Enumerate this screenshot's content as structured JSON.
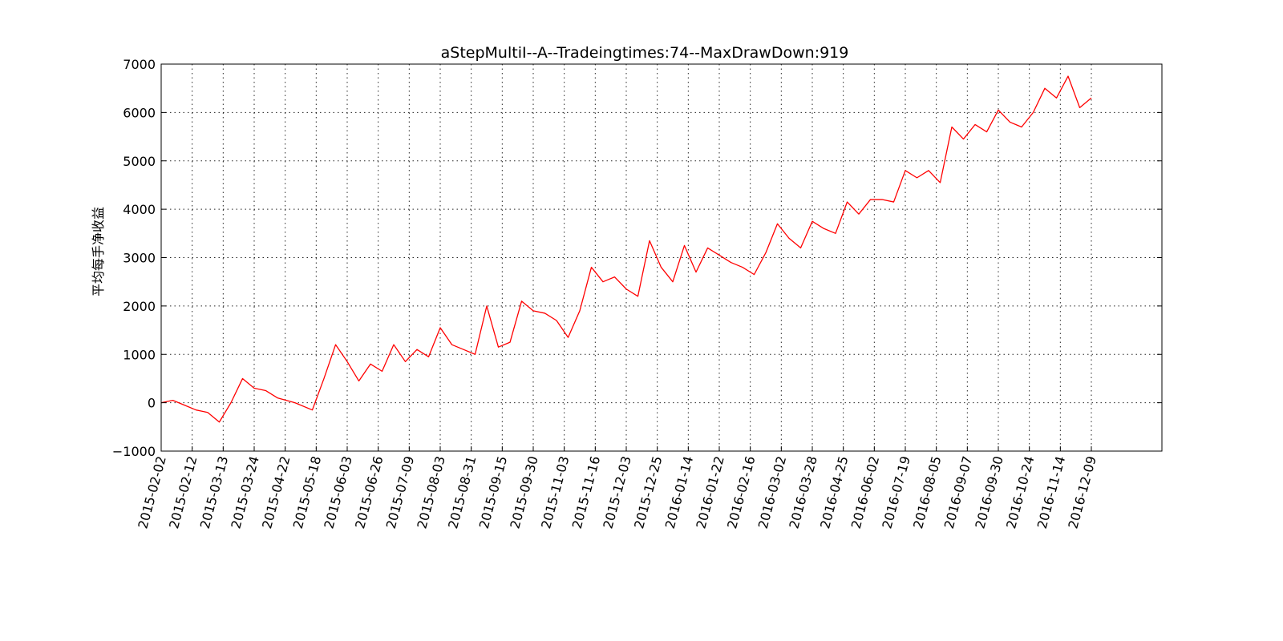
{
  "chart_data": {
    "type": "line",
    "title": "aStepMultiI--A--Tradeingtimes:74--MaxDrawDown:919",
    "xlabel": "",
    "ylabel": "平均每手净收益",
    "ylim": [
      -1000,
      7000
    ],
    "yticks": [
      -1000,
      0,
      1000,
      2000,
      3000,
      4000,
      5000,
      6000,
      7000
    ],
    "ytick_labels": [
      "−1000",
      "0",
      "1000",
      "2000",
      "3000",
      "4000",
      "5000",
      "6000",
      "7000"
    ],
    "xtick_labels": [
      "2015-02-02",
      "2015-02-12",
      "2015-03-13",
      "2015-03-24",
      "2015-04-22",
      "2015-05-18",
      "2015-06-03",
      "2015-06-26",
      "2015-07-09",
      "2015-08-03",
      "2015-08-31",
      "2015-09-15",
      "2015-09-30",
      "2015-11-03",
      "2015-11-16",
      "2015-12-03",
      "2015-12-25",
      "2016-01-14",
      "2016-01-22",
      "2016-02-16",
      "2016-03-02",
      "2016-03-28",
      "2016-04-25",
      "2016-06-02",
      "2016-07-19",
      "2016-08-05",
      "2016-09-07",
      "2016-09-30",
      "2016-10-24",
      "2016-11-14",
      "2016-12-09"
    ],
    "x_index_range": [
      0,
      1600
    ],
    "grid": true,
    "line_color": "#ff0000",
    "series": [
      {
        "x": [
          0,
          20,
          40,
          60,
          80,
          100,
          120,
          140,
          160,
          180,
          200,
          230,
          260,
          280,
          300,
          320,
          340,
          360,
          380,
          400,
          420,
          440,
          460,
          480,
          500,
          520,
          540,
          560,
          580,
          600,
          620,
          640,
          660,
          680,
          700,
          720,
          740,
          760,
          780,
          800,
          820,
          840,
          860,
          880,
          900,
          920,
          940,
          960,
          980,
          1000,
          1020,
          1040,
          1060,
          1080,
          1100,
          1120,
          1140,
          1160,
          1180,
          1200,
          1220,
          1240,
          1260,
          1280,
          1300,
          1320,
          1340,
          1360,
          1380,
          1400,
          1420,
          1440,
          1460,
          1480,
          1500,
          1520,
          1540,
          1560,
          1580,
          1600
        ],
        "values": [
          0,
          50,
          -50,
          -150,
          -200,
          -400,
          0,
          500,
          300,
          250,
          100,
          0,
          -150,
          500,
          1200,
          850,
          450,
          800,
          650,
          1200,
          850,
          1100,
          950,
          1550,
          1200,
          1100,
          1000,
          2000,
          1150,
          1250,
          2100,
          1900,
          1850,
          1700,
          1350,
          1900,
          2800,
          2500,
          2600,
          2350,
          2200,
          3350,
          2800,
          2500,
          3250,
          2700,
          3200,
          3050,
          2900,
          2800,
          2650,
          3100,
          3700,
          3400,
          3200,
          3750,
          3600,
          3500,
          4150,
          3900,
          4200,
          4200,
          4150,
          4800,
          4650,
          4800,
          4550,
          5700,
          5450,
          5750,
          5600,
          6050,
          5800,
          5700,
          6000,
          6500,
          6300,
          6750,
          6100,
          6300
        ]
      }
    ]
  }
}
